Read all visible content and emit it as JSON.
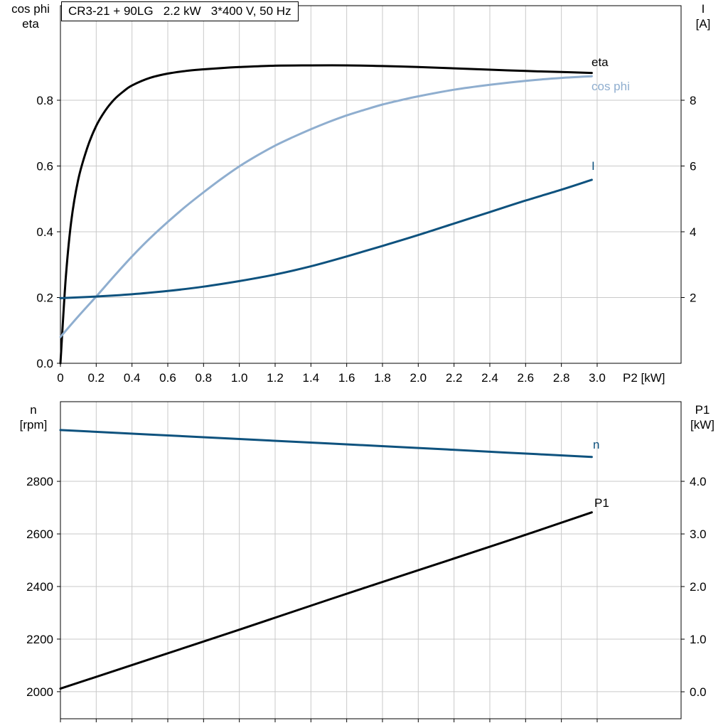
{
  "colors": {
    "black": "#000000",
    "light_blue": "#8faecf",
    "dark_blue": "#0e527e",
    "grid": "#c9c9c9",
    "border": "#000000",
    "text": "#000000",
    "background": "#ffffff"
  },
  "chart_data": [
    {
      "type": "line",
      "title": "CR3-21 + 90LG   2.2 kW   3*400 V, 50 Hz",
      "axes": {
        "x": {
          "label": "P2 [kW]",
          "min": 0,
          "max": 3.469,
          "ticks": [
            0,
            0.2,
            0.4,
            0.6,
            0.8,
            1.0,
            1.2,
            1.4,
            1.6,
            1.8,
            2.0,
            2.2,
            2.4,
            2.6,
            2.8,
            3.0
          ],
          "labels": [
            "0",
            "0.2",
            "0.4",
            "0.6",
            "0.8",
            "1.0",
            "1.2",
            "1.4",
            "1.6",
            "1.8",
            "2.0",
            "2.2",
            "2.4",
            "2.6",
            "2.8",
            "3.0"
          ]
        },
        "left": {
          "title_lines": [
            "cos phi",
            "eta"
          ],
          "min": 0,
          "max": 1.0876,
          "ticks": [
            0,
            0.2,
            0.4,
            0.6,
            0.8
          ],
          "labels": [
            "0.0",
            "0.2",
            "0.4",
            "0.6",
            "0.8"
          ]
        },
        "right": {
          "title_lines": [
            "I",
            "[A]"
          ],
          "min": 0,
          "max": 10.876,
          "ticks": [
            2,
            4,
            6,
            8
          ],
          "labels": [
            "2",
            "4",
            "6",
            "8"
          ]
        }
      },
      "grid": true,
      "legend_position": "curve-labels",
      "series": [
        {
          "name": "eta",
          "axis": "left",
          "color": "black",
          "label": {
            "text": "eta",
            "px": [
              832,
              93
            ],
            "color": "black"
          },
          "points": [
            [
              0,
              0
            ],
            [
              0.03,
              0.26
            ],
            [
              0.06,
              0.43
            ],
            [
              0.1,
              0.56
            ],
            [
              0.15,
              0.655
            ],
            [
              0.2,
              0.722
            ],
            [
              0.25,
              0.768
            ],
            [
              0.3,
              0.802
            ],
            [
              0.35,
              0.826
            ],
            [
              0.4,
              0.845
            ],
            [
              0.5,
              0.868
            ],
            [
              0.6,
              0.881
            ],
            [
              0.7,
              0.889
            ],
            [
              0.8,
              0.894
            ],
            [
              0.9,
              0.898
            ],
            [
              1.0,
              0.901
            ],
            [
              1.2,
              0.905
            ],
            [
              1.4,
              0.906
            ],
            [
              1.6,
              0.906
            ],
            [
              1.8,
              0.904
            ],
            [
              2.0,
              0.901
            ],
            [
              2.2,
              0.897
            ],
            [
              2.4,
              0.893
            ],
            [
              2.6,
              0.889
            ],
            [
              2.8,
              0.886
            ],
            [
              2.97,
              0.883
            ]
          ]
        },
        {
          "name": "cos phi",
          "axis": "left",
          "color": "light_blue",
          "label": {
            "text": "cos phi",
            "px": [
              832,
              127
            ],
            "color": "light_blue"
          },
          "points": [
            [
              0,
              0.08
            ],
            [
              0.1,
              0.143
            ],
            [
              0.2,
              0.203
            ],
            [
              0.3,
              0.265
            ],
            [
              0.4,
              0.325
            ],
            [
              0.5,
              0.38
            ],
            [
              0.6,
              0.43
            ],
            [
              0.7,
              0.477
            ],
            [
              0.8,
              0.52
            ],
            [
              0.9,
              0.561
            ],
            [
              1.0,
              0.599
            ],
            [
              1.1,
              0.632
            ],
            [
              1.2,
              0.662
            ],
            [
              1.3,
              0.688
            ],
            [
              1.4,
              0.712
            ],
            [
              1.5,
              0.734
            ],
            [
              1.6,
              0.754
            ],
            [
              1.7,
              0.771
            ],
            [
              1.8,
              0.787
            ],
            [
              1.9,
              0.8
            ],
            [
              2.0,
              0.812
            ],
            [
              2.2,
              0.832
            ],
            [
              2.4,
              0.847
            ],
            [
              2.6,
              0.859
            ],
            [
              2.8,
              0.868
            ],
            [
              2.97,
              0.873
            ]
          ]
        },
        {
          "name": "I",
          "axis": "right",
          "color": "dark_blue",
          "label": {
            "text": "I",
            "px": [
              832,
              239
            ],
            "color": "dark_blue"
          },
          "points": [
            [
              0,
              1.98
            ],
            [
              0.2,
              2.03
            ],
            [
              0.4,
              2.1
            ],
            [
              0.6,
              2.2
            ],
            [
              0.8,
              2.33
            ],
            [
              1.0,
              2.5
            ],
            [
              1.2,
              2.7
            ],
            [
              1.4,
              2.95
            ],
            [
              1.6,
              3.25
            ],
            [
              1.8,
              3.57
            ],
            [
              2.0,
              3.9
            ],
            [
              2.2,
              4.25
            ],
            [
              2.4,
              4.6
            ],
            [
              2.6,
              4.95
            ],
            [
              2.8,
              5.28
            ],
            [
              2.97,
              5.58
            ]
          ]
        }
      ]
    },
    {
      "type": "line",
      "title": "",
      "axes": {
        "x": {
          "label": "",
          "min": 0,
          "max": 3.469,
          "ticks": [
            0,
            0.2,
            0.4,
            0.6,
            0.8,
            1.0,
            1.2,
            1.4,
            1.6,
            1.8,
            2.0,
            2.2,
            2.4,
            2.6,
            2.8,
            3.0
          ],
          "labels": []
        },
        "left": {
          "title_lines": [
            "n",
            "[rpm]"
          ],
          "min": 1897,
          "max": 3103,
          "ticks": [
            2000,
            2200,
            2400,
            2600,
            2800
          ],
          "labels": [
            "2000",
            "2200",
            "2400",
            "2600",
            "2800"
          ]
        },
        "right": {
          "title_lines": [
            "P1",
            "[kW]"
          ],
          "min": -0.513,
          "max": 5.514,
          "ticks": [
            0,
            1,
            2,
            3,
            4
          ],
          "labels": [
            "0.0",
            "1.0",
            "2.0",
            "3.0",
            "4.0"
          ]
        }
      },
      "grid": true,
      "legend_position": "curve-labels",
      "series": [
        {
          "name": "n",
          "axis": "left",
          "color": "dark_blue",
          "label": {
            "text": "n",
            "px": [
              834,
              631
            ],
            "color": "dark_blue"
          },
          "points": [
            [
              0,
              2995
            ],
            [
              0.5,
              2978
            ],
            [
              1.0,
              2961
            ],
            [
              1.5,
              2944
            ],
            [
              2.0,
              2927
            ],
            [
              2.5,
              2909
            ],
            [
              2.97,
              2893
            ]
          ]
        },
        {
          "name": "P1",
          "axis": "right",
          "color": "black",
          "label": {
            "text": "P1",
            "px": [
              836,
              713
            ],
            "color": "black"
          },
          "points": [
            [
              0,
              0.06
            ],
            [
              0.5,
              0.62
            ],
            [
              1.0,
              1.18
            ],
            [
              1.5,
              1.75
            ],
            [
              2.0,
              2.31
            ],
            [
              2.5,
              2.87
            ],
            [
              2.97,
              3.41
            ]
          ]
        }
      ]
    }
  ]
}
